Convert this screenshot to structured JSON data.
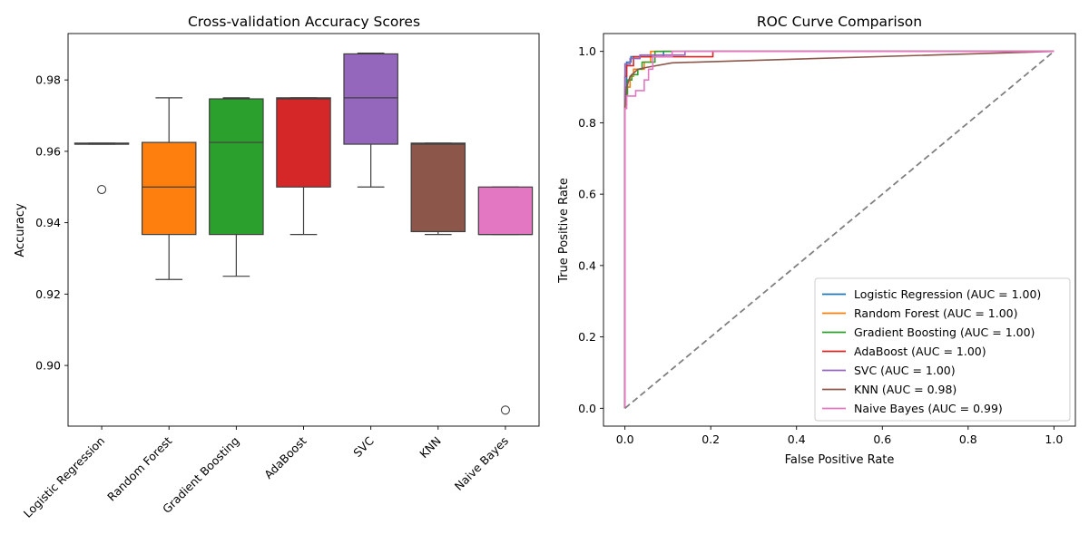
{
  "chart_data": [
    {
      "type": "box",
      "title": "Cross-validation Accuracy Scores",
      "xlabel": "",
      "ylabel": "Accuracy",
      "ylim": [
        0.883,
        0.993
      ],
      "yticks": [
        0.9,
        0.92,
        0.94,
        0.96,
        0.98
      ],
      "ytick_labels": [
        "0.90",
        "0.92",
        "0.94",
        "0.96",
        "0.98"
      ],
      "grid": false,
      "categories": [
        "Logistic Regression",
        "Random Forest",
        "Gradient Boosting",
        "AdaBoost",
        "SVC",
        "KNN",
        "Naive Bayes"
      ],
      "series": [
        {
          "color": "#1f77b4",
          "whisker_low": 0.962,
          "q1": 0.962,
          "median": 0.962,
          "q3": 0.9623,
          "whisker_high": 0.9623,
          "outliers": [
            0.9493
          ]
        },
        {
          "color": "#ff7f0e",
          "whisker_low": 0.9241,
          "q1": 0.9367,
          "median": 0.95,
          "q3": 0.9625,
          "whisker_high": 0.975,
          "outliers": []
        },
        {
          "color": "#2ca02c",
          "whisker_low": 0.925,
          "q1": 0.9367,
          "median": 0.9625,
          "q3": 0.9747,
          "whisker_high": 0.975,
          "outliers": []
        },
        {
          "color": "#d62728",
          "whisker_low": 0.9367,
          "q1": 0.95,
          "median": 0.9747,
          "q3": 0.975,
          "whisker_high": 0.975,
          "outliers": []
        },
        {
          "color": "#9467bd",
          "whisker_low": 0.95,
          "q1": 0.962,
          "median": 0.975,
          "q3": 0.9873,
          "whisker_high": 0.9875,
          "outliers": []
        },
        {
          "color": "#8c564b",
          "whisker_low": 0.9367,
          "q1": 0.9375,
          "median": 0.962,
          "q3": 0.9623,
          "whisker_high": 0.9623,
          "outliers": []
        },
        {
          "color": "#e377c2",
          "whisker_low": 0.9367,
          "q1": 0.9367,
          "median": 0.9367,
          "q3": 0.95,
          "whisker_high": 0.95,
          "outliers": [
            0.8875
          ]
        }
      ]
    },
    {
      "type": "line",
      "title": "ROC Curve Comparison",
      "xlabel": "False Positive Rate",
      "ylabel": "True Positive Rate",
      "xlim": [
        -0.05,
        1.05
      ],
      "ylim": [
        -0.05,
        1.05
      ],
      "xticks": [
        0.0,
        0.2,
        0.4,
        0.6,
        0.8,
        1.0
      ],
      "xtick_labels": [
        "0.0",
        "0.2",
        "0.4",
        "0.6",
        "0.8",
        "1.0"
      ],
      "yticks": [
        0.0,
        0.2,
        0.4,
        0.6,
        0.8,
        1.0
      ],
      "ytick_labels": [
        "0.0",
        "0.2",
        "0.4",
        "0.6",
        "0.8",
        "1.0"
      ],
      "grid": false,
      "legend": "bottom-right",
      "diagonal": {
        "x": [
          0,
          1
        ],
        "y": [
          0,
          1
        ],
        "color": "#808080",
        "style": "dashed"
      },
      "series": [
        {
          "name": "Logistic Regression (AUC = 1.00)",
          "color": "#1f77b4",
          "x": [
            0,
            0,
            0.004,
            0.004,
            0.014,
            0.014,
            0.09,
            0.09,
            1.0
          ],
          "y": [
            0,
            0.9,
            0.9,
            0.97,
            0.97,
            0.985,
            0.985,
            1.0,
            1.0
          ]
        },
        {
          "name": "Random Forest (AUC = 1.00)",
          "color": "#ff7f0e",
          "x": [
            0,
            0,
            0.004,
            0.004,
            0.012,
            0.012,
            0.02,
            0.02,
            0.045,
            0.045,
            0.06,
            0.06,
            1.0
          ],
          "y": [
            0,
            0.85,
            0.85,
            0.9,
            0.9,
            0.93,
            0.93,
            0.95,
            0.95,
            0.97,
            0.97,
            1.0,
            1.0
          ]
        },
        {
          "name": "Gradient Boosting (AUC = 1.00)",
          "color": "#2ca02c",
          "x": [
            0,
            0,
            0.006,
            0.006,
            0.016,
            0.016,
            0.03,
            0.03,
            0.04,
            0.04,
            0.07,
            0.07,
            1.0
          ],
          "y": [
            0,
            0.88,
            0.88,
            0.92,
            0.92,
            0.935,
            0.935,
            0.95,
            0.95,
            0.97,
            0.97,
            1.0,
            1.0
          ]
        },
        {
          "name": "AdaBoost (AUC = 1.00)",
          "color": "#d62728",
          "x": [
            0,
            0,
            0.004,
            0.004,
            0.02,
            0.02,
            0.205,
            0.205,
            1.0
          ],
          "y": [
            0,
            0.93,
            0.93,
            0.96,
            0.96,
            0.985,
            0.985,
            1.0,
            1.0
          ]
        },
        {
          "name": "SVC (AUC = 1.00)",
          "color": "#9467bd",
          "x": [
            0,
            0,
            0.012,
            0.012,
            0.035,
            0.035,
            0.14,
            0.14,
            1.0
          ],
          "y": [
            0,
            0.965,
            0.965,
            0.98,
            0.98,
            0.99,
            0.99,
            1.0,
            1.0
          ]
        },
        {
          "name": "KNN (AUC = 0.98)",
          "color": "#8c564b",
          "x": [
            0,
            0,
            0.004,
            0.012,
            0.03,
            0.05,
            0.11,
            1.0
          ],
          "y": [
            0,
            0.84,
            0.9,
            0.93,
            0.95,
            0.955,
            0.968,
            1.0
          ]
        },
        {
          "name": "Naive Bayes (AUC = 0.99)",
          "color": "#e377c2",
          "x": [
            0,
            0,
            0.004,
            0.004,
            0.025,
            0.025,
            0.045,
            0.045,
            0.055,
            0.055,
            0.065,
            0.065,
            0.11,
            0.11,
            1.0
          ],
          "y": [
            0,
            0.84,
            0.84,
            0.875,
            0.875,
            0.89,
            0.89,
            0.92,
            0.92,
            0.95,
            0.95,
            0.985,
            0.985,
            1.0,
            1.0
          ]
        }
      ]
    }
  ]
}
